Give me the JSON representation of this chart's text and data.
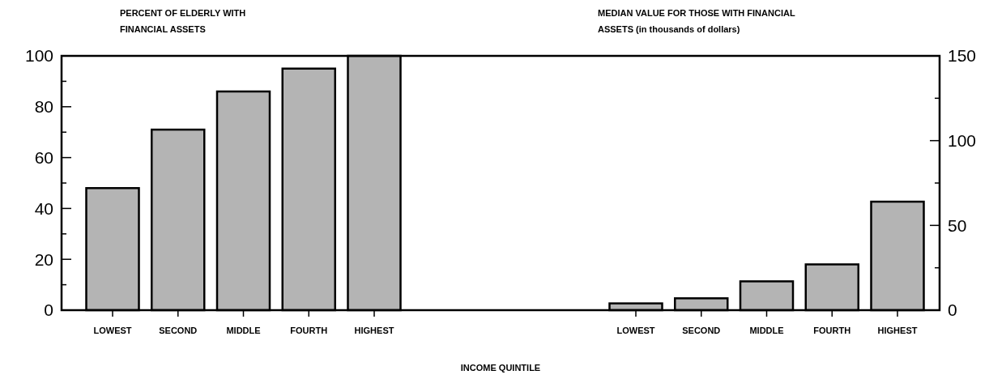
{
  "chart_data": {
    "type": "bar",
    "title": "PERCENT OF ELDERLY WITH FINANCIAL ASSETS",
    "subtitle": "MEDIAN VALUE FOR THOSE WITH FINANCIAL ASSETS (in thousands of dollars)",
    "xlabel": "INCOME QUINTILE",
    "categories": [
      "LOWEST",
      "SECOND",
      "MIDDLE",
      "FOURTH",
      "HIGHEST",
      null,
      null,
      null,
      "LOWEST",
      "SECOND",
      "MIDDLE",
      "FOURTH",
      "HIGHEST"
    ],
    "series": [
      {
        "color": "#b4b4b4",
        "values": [
          48,
          71,
          86,
          95,
          100,
          null,
          null,
          null,
          null,
          null,
          null,
          null,
          null
        ]
      },
      {
        "color": "#b4b4b4",
        "axis": "y2",
        "values": [
          null,
          null,
          null,
          null,
          null,
          null,
          null,
          null,
          4,
          7,
          17,
          27,
          64
        ]
      }
    ],
    "ylim": [
      0,
      100
    ],
    "yticks": [
      0,
      {
        "value": 10,
        "label": null
      },
      20,
      {
        "value": 30,
        "label": null
      },
      40,
      {
        "value": 50,
        "label": null
      },
      60,
      {
        "value": 70,
        "label": null
      },
      80,
      {
        "value": 90,
        "label": null
      },
      100
    ],
    "y2lim": [
      0,
      150
    ],
    "y2ticks": [
      0,
      {
        "value": 25,
        "label": null
      },
      50,
      {
        "value": 75,
        "label": null
      },
      100,
      {
        "value": 125,
        "label": null
      },
      150
    ]
  }
}
